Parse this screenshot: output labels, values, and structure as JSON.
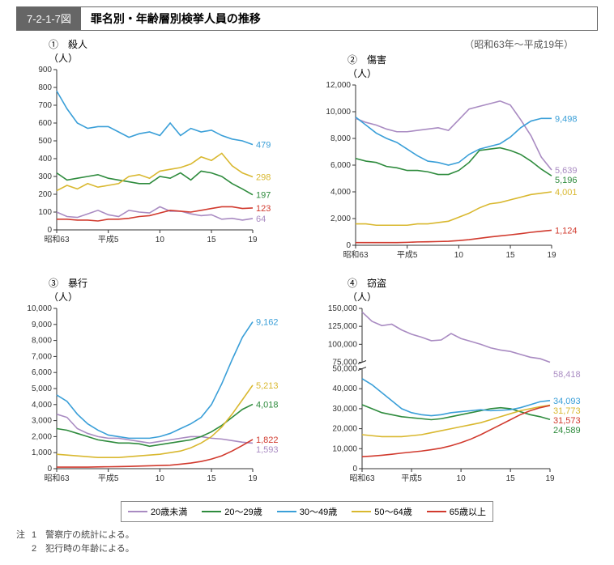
{
  "figure_number": "7-2-1-7図",
  "figure_title": "罪名別・年齢層別検挙人員の推移",
  "period": "（昭和63年～平成19年）",
  "colors": {
    "under20": "#a98bc2",
    "20_29": "#2e8b3d",
    "30_49": "#3a9fd8",
    "50_64": "#d9b82f",
    "65plus": "#d13a2e",
    "axis": "#333333",
    "bg": "#ffffff"
  },
  "legend": [
    {
      "label": "20歳未満",
      "key": "under20"
    },
    {
      "label": "20～29歳",
      "key": "20_29"
    },
    {
      "label": "30～49歳",
      "key": "30_49"
    },
    {
      "label": "50～64歳",
      "key": "50_64"
    },
    {
      "label": "65歳以上",
      "key": "65plus"
    }
  ],
  "x": {
    "ticks": [
      "昭和63",
      "平成5",
      "10",
      "15",
      "19"
    ],
    "n": 20
  },
  "panels": [
    {
      "id": "p1",
      "num": "①",
      "title": "殺人",
      "ylabel": "（人）",
      "ylim": [
        0,
        900
      ],
      "ystep": 100,
      "series": {
        "under20": [
          100,
          75,
          70,
          90,
          110,
          85,
          75,
          110,
          100,
          95,
          130,
          105,
          105,
          90,
          80,
          85,
          60,
          65,
          55,
          64
        ],
        "20_29": [
          320,
          280,
          290,
          300,
          310,
          290,
          280,
          270,
          260,
          260,
          300,
          290,
          320,
          280,
          330,
          320,
          300,
          260,
          230,
          197
        ],
        "30_49": [
          780,
          680,
          600,
          570,
          580,
          580,
          550,
          520,
          540,
          550,
          530,
          600,
          530,
          570,
          550,
          560,
          530,
          510,
          500,
          479
        ],
        "50_64": [
          220,
          250,
          230,
          260,
          240,
          250,
          260,
          300,
          310,
          290,
          330,
          340,
          350,
          370,
          410,
          390,
          430,
          360,
          320,
          298
        ],
        "65plus": [
          60,
          60,
          55,
          55,
          50,
          60,
          60,
          65,
          75,
          80,
          95,
          110,
          105,
          100,
          110,
          120,
          130,
          130,
          120,
          123
        ]
      },
      "endlabels": {
        "30_49": "479",
        "50_64": "298",
        "20_29": "197",
        "65plus": "123",
        "under20": "64"
      }
    },
    {
      "id": "p2",
      "num": "②",
      "title": "傷害",
      "ylabel": "（人）",
      "ylim": [
        0,
        12000
      ],
      "ystep": 2000,
      "series": {
        "under20": [
          9500,
          9200,
          9000,
          8700,
          8500,
          8500,
          8600,
          8700,
          8800,
          8600,
          9400,
          10200,
          10400,
          10600,
          10800,
          10500,
          9400,
          8200,
          6600,
          5639
        ],
        "20_29": [
          6500,
          6300,
          6200,
          5900,
          5800,
          5600,
          5600,
          5500,
          5300,
          5300,
          5600,
          6200,
          7100,
          7200,
          7300,
          7100,
          6800,
          6300,
          5700,
          5196
        ],
        "30_49": [
          9600,
          9000,
          8400,
          8000,
          7700,
          7200,
          6700,
          6300,
          6200,
          6000,
          6200,
          6800,
          7200,
          7400,
          7600,
          8100,
          8800,
          9300,
          9500,
          9498
        ],
        "50_64": [
          1600,
          1600,
          1500,
          1500,
          1500,
          1500,
          1600,
          1600,
          1700,
          1800,
          2100,
          2400,
          2800,
          3100,
          3200,
          3400,
          3600,
          3800,
          3900,
          4001
        ],
        "65plus": [
          200,
          200,
          200,
          200,
          200,
          220,
          250,
          260,
          280,
          300,
          350,
          420,
          520,
          620,
          700,
          780,
          870,
          970,
          1050,
          1124
        ]
      },
      "endlabels": {
        "30_49": "9,498",
        "under20": "5,639",
        "20_29": "5,196",
        "50_64": "4,001",
        "65plus": "1,124"
      }
    },
    {
      "id": "p3",
      "num": "③",
      "title": "暴行",
      "ylabel": "（人）",
      "ylim": [
        0,
        10000
      ],
      "ystep": 1000,
      "series": {
        "under20": [
          3400,
          3200,
          2500,
          2200,
          2000,
          1900,
          1900,
          1800,
          1700,
          1600,
          1700,
          1800,
          1900,
          2000,
          2000,
          1900,
          1850,
          1750,
          1650,
          1593
        ],
        "20_29": [
          2500,
          2400,
          2200,
          2000,
          1800,
          1700,
          1600,
          1600,
          1550,
          1400,
          1500,
          1600,
          1700,
          1800,
          2000,
          2300,
          2700,
          3200,
          3700,
          4018
        ],
        "30_49": [
          4600,
          4200,
          3400,
          2800,
          2400,
          2100,
          2000,
          1900,
          1900,
          1900,
          2000,
          2200,
          2500,
          2800,
          3200,
          4000,
          5300,
          6800,
          8200,
          9162
        ],
        "50_64": [
          900,
          850,
          800,
          750,
          700,
          700,
          700,
          750,
          800,
          850,
          900,
          1000,
          1100,
          1300,
          1600,
          2000,
          2600,
          3400,
          4300,
          5213
        ],
        "65plus": [
          100,
          100,
          100,
          100,
          110,
          120,
          130,
          140,
          160,
          180,
          200,
          220,
          280,
          350,
          450,
          600,
          800,
          1100,
          1450,
          1822
        ]
      },
      "endlabels": {
        "30_49": "9,162",
        "50_64": "5,213",
        "20_29": "4,018",
        "65plus": "1,822",
        "under20": "1,593"
      }
    },
    {
      "id": "p4",
      "num": "④",
      "title": "窃盗",
      "ylabel": "（人）",
      "ylim_upper": [
        75000,
        150000
      ],
      "ystep_upper": 25000,
      "ylim_lower": [
        0,
        50000
      ],
      "ystep_lower": 10000,
      "series_upper": {
        "under20": [
          145000,
          132000,
          126000,
          128000,
          120000,
          114000,
          110000,
          105000,
          106000,
          115000,
          108000,
          104000,
          100000,
          95000,
          92000,
          90000,
          86000,
          82000,
          80000,
          58418
        ]
      },
      "series_lower": {
        "20_29": [
          32000,
          30000,
          28000,
          27000,
          26000,
          25500,
          25000,
          24500,
          25000,
          26000,
          27000,
          28000,
          29000,
          30000,
          30500,
          30000,
          28500,
          27000,
          26000,
          24589
        ],
        "30_49": [
          45000,
          42000,
          38000,
          34000,
          30000,
          28000,
          27000,
          26500,
          27000,
          28000,
          28500,
          29000,
          29500,
          29000,
          29200,
          29500,
          30500,
          32000,
          33500,
          34093
        ],
        "50_64": [
          17000,
          16500,
          16000,
          16000,
          16000,
          16500,
          17000,
          18000,
          19000,
          20000,
          21000,
          22000,
          23000,
          24500,
          26000,
          27500,
          29000,
          30000,
          31000,
          31773
        ],
        "65plus": [
          6000,
          6300,
          6700,
          7200,
          7800,
          8300,
          8800,
          9500,
          10300,
          11500,
          13000,
          14800,
          17000,
          19500,
          22000,
          24500,
          27000,
          29000,
          30500,
          31573
        ]
      },
      "endlabels": {
        "under20": "58,418",
        "30_49": "34,093",
        "50_64": "31,773",
        "65plus": "31,573",
        "20_29": "24,589"
      }
    }
  ],
  "notes": {
    "prefix": "注",
    "items": [
      "1　警察庁の統計による。",
      "2　犯行時の年齢による。"
    ]
  }
}
